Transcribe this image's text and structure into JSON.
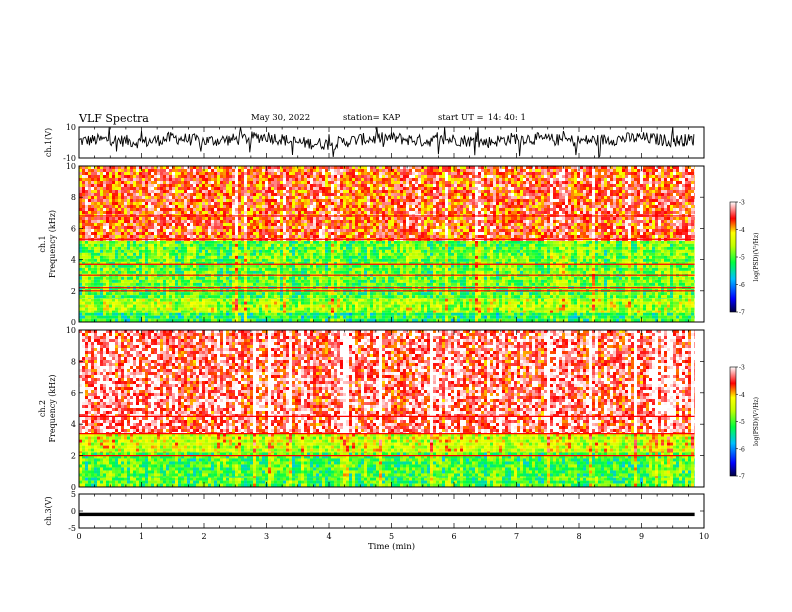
{
  "header": {
    "title": "VLF Spectra",
    "date": "May 30, 2022",
    "station": "station= KAP",
    "start_label": "start  UT  =",
    "start_time": "14: 40: 1"
  },
  "colorbar_label": "log(PSD)(V²/Hz)",
  "colors": {
    "cold": "#000060",
    "mid": "#00e000",
    "warm": "#ffff00",
    "hot": "#ff0000",
    "saturated": "#ffffff"
  },
  "chart_data": [
    {
      "type": "line",
      "panel": "ch1-waveform",
      "ylabel": "ch.1(V)",
      "ylim": [
        -10,
        10
      ],
      "yticks": [
        "10",
        "-10"
      ],
      "x": [
        0,
        0.5,
        1,
        1.5,
        2,
        2.5,
        3,
        3.5,
        4,
        4.5,
        5,
        5.5,
        6,
        6.5,
        7,
        7.5,
        8,
        8.5,
        9,
        9.5,
        9.85
      ],
      "y": [
        1,
        2,
        0,
        3,
        1,
        2,
        4,
        0,
        -1,
        2,
        3,
        1,
        2,
        0,
        3,
        2,
        1,
        2,
        3,
        1,
        2
      ],
      "xlim": [
        0,
        10
      ]
    },
    {
      "type": "heatmap",
      "panel": "ch1-spectrogram",
      "ylabel": "ch.1\nFrequency (kHz)",
      "ylim": [
        0,
        10
      ],
      "yticks": [
        "0",
        "2",
        "4",
        "6",
        "8",
        "10"
      ],
      "xlim": [
        0,
        10
      ],
      "data_end_min": 9.85,
      "colorbar": {
        "range": [
          -7,
          -3
        ],
        "ticks": [
          "-3",
          "-4",
          "-5",
          "-6",
          "-7"
        ]
      },
      "bands": [
        {
          "f": [
            0,
            0.6
          ],
          "level": -5.2
        },
        {
          "f": [
            0.6,
            1.5
          ],
          "level": -4.6
        },
        {
          "f": [
            1.5,
            2.3
          ],
          "level": -5.0
        },
        {
          "f": [
            2.3,
            5.2
          ],
          "level": -4.9
        },
        {
          "f": [
            5.2,
            10
          ],
          "level": -3.6
        }
      ],
      "lines_khz": [
        2.0,
        2.2,
        3.0,
        3.7,
        5.3,
        6.8
      ]
    },
    {
      "type": "heatmap",
      "panel": "ch2-spectrogram",
      "ylabel": "ch.2\nFrequency (kHz)",
      "ylim": [
        0,
        10
      ],
      "yticks": [
        "0",
        "2",
        "4",
        "6",
        "8",
        "10"
      ],
      "xlim": [
        0,
        10
      ],
      "data_end_min": 9.85,
      "colorbar": {
        "range": [
          -7,
          -3
        ],
        "ticks": [
          "-3",
          "-4",
          "-5",
          "-6",
          "-7"
        ]
      },
      "bands": [
        {
          "f": [
            0,
            0.6
          ],
          "level": -5.0
        },
        {
          "f": [
            0.6,
            2.2
          ],
          "level": -5.0
        },
        {
          "f": [
            2.2,
            3.4
          ],
          "level": -4.4
        },
        {
          "f": [
            3.4,
            10
          ],
          "level": -3.3
        }
      ],
      "lines_khz": [
        2.0,
        3.4,
        4.5
      ]
    },
    {
      "type": "line",
      "panel": "ch3-waveform",
      "ylabel": "ch.3(V)",
      "ylim": [
        -5,
        5
      ],
      "yticks": [
        "5",
        "0",
        "-5"
      ],
      "level": -1,
      "band_width": 1.0,
      "xlim": [
        0,
        10
      ],
      "xticks": [
        "0",
        "1",
        "2",
        "3",
        "4",
        "5",
        "6",
        "7",
        "8",
        "9",
        "10"
      ],
      "xlabel": "Time (min)"
    }
  ]
}
